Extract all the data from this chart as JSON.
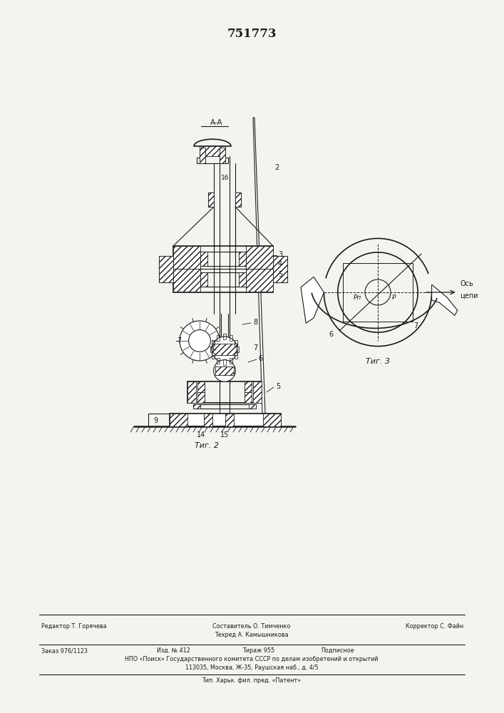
{
  "patent_number": "751773",
  "bg": "#f5f3ef",
  "lc": "#1a1a1a",
  "footer_r": "Редактор Т. Горячева",
  "footer_c1": "Составитель О. Тимченко",
  "footer_c2": "Техред А. Камышникова",
  "footer_corr": "Корректор С. Файн",
  "footer_l2": "Заказ 976/1123",
  "footer_c2b": "Изд. № 412",
  "footer_c2c": "Тираж 955",
  "footer_c2d": "Подписное",
  "footer_l3": "НПО «Поиск» Государственного комитета СССР по делам изобретений и открытий",
  "footer_l4": "113035, Москва, Ж-35, Раушская наб., д. 4/5",
  "footer_l5": "Тип. Харьк. фил. пред. «Патент»",
  "fig2_label": "Τиг. 2",
  "fig3_label": "Τиг. 3"
}
